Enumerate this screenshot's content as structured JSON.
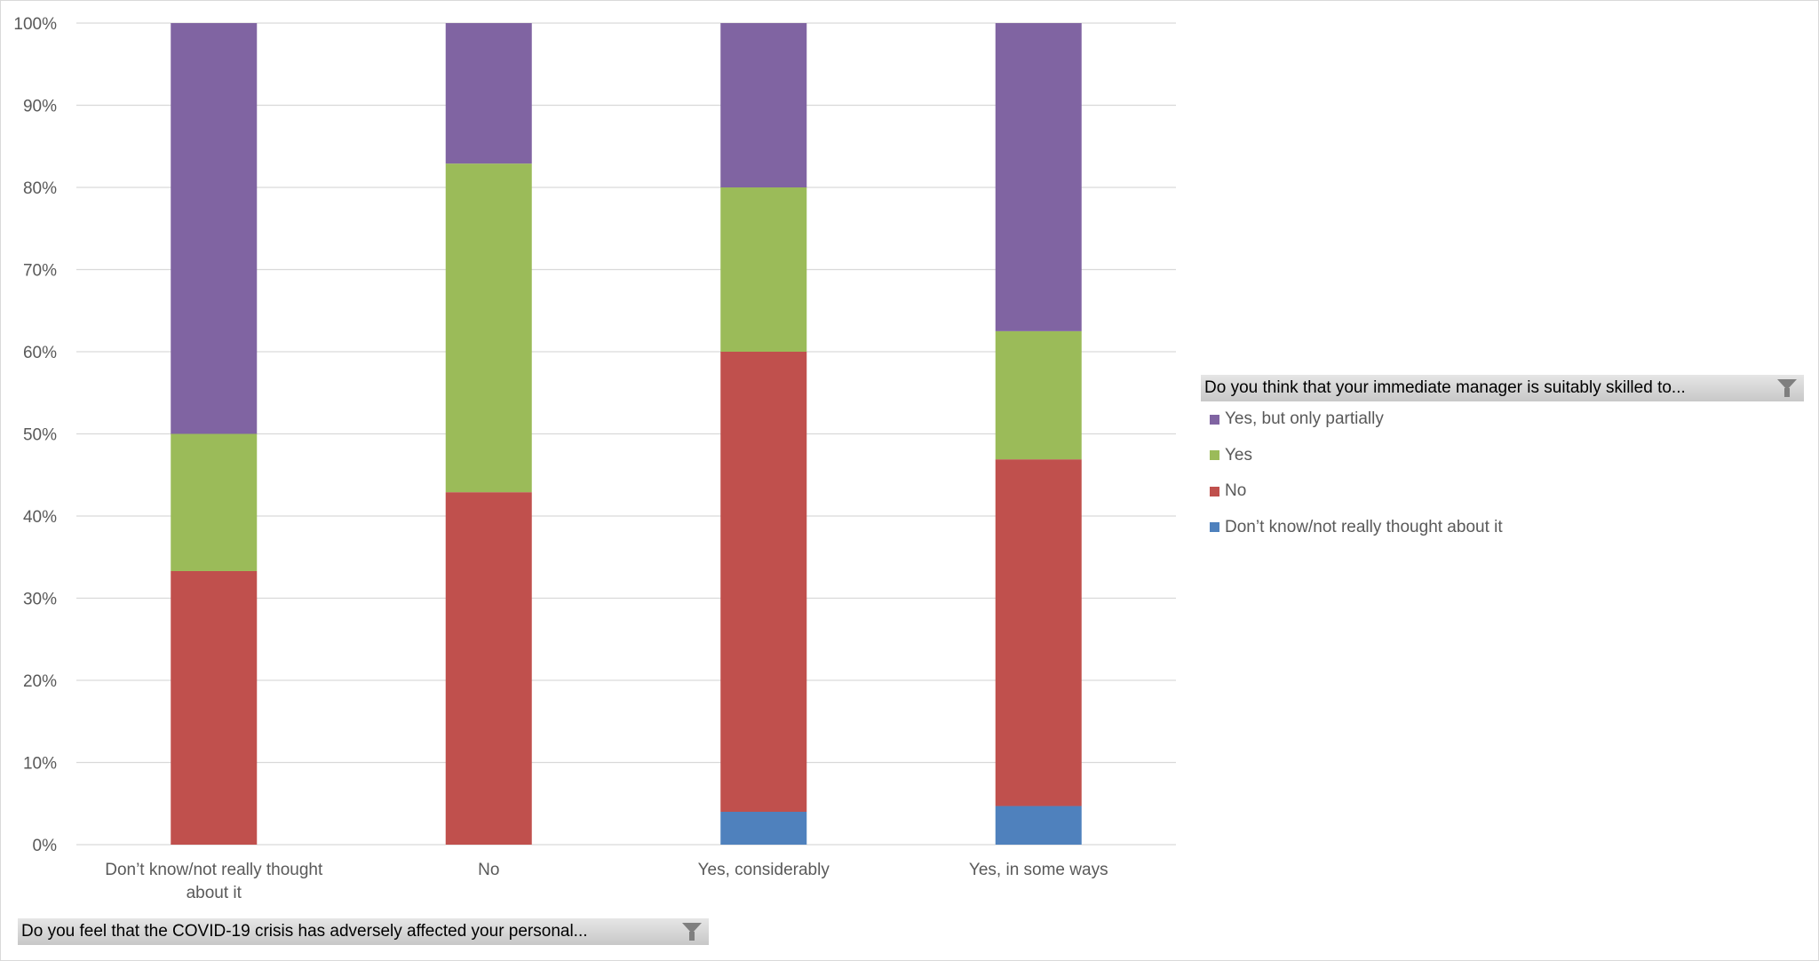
{
  "chart_data": {
    "type": "bar",
    "stacked": true,
    "percent_stacked": true,
    "categories": [
      "Don’t know/not really thought about it",
      "No",
      "Yes, considerably",
      "Yes, in some ways"
    ],
    "category_label_lines": [
      [
        "Don’t know/not really thought",
        "about it"
      ],
      [
        "No"
      ],
      [
        "Yes, considerably"
      ],
      [
        "Yes, in some ways"
      ]
    ],
    "series": [
      {
        "name": "Don’t know/not really thought about it",
        "color": "#4f81bd",
        "values": [
          0,
          0,
          4.0,
          4.7
        ]
      },
      {
        "name": "No",
        "color": "#c0504d",
        "values": [
          33.3,
          42.9,
          56.0,
          42.2
        ]
      },
      {
        "name": "Yes",
        "color": "#9bbb59",
        "values": [
          16.7,
          40.0,
          20.0,
          15.6
        ]
      },
      {
        "name": "Yes, but only partially",
        "color": "#8064a2",
        "values": [
          50.0,
          17.1,
          20.0,
          37.5
        ]
      }
    ],
    "ylim": [
      0,
      100
    ],
    "yticks": [
      "0%",
      "10%",
      "20%",
      "30%",
      "40%",
      "50%",
      "60%",
      "70%",
      "80%",
      "90%",
      "100%"
    ],
    "grid": true,
    "legend_placement": "right",
    "legend_title": "Do you think that your immediate manager is suitably skilled to...",
    "axis_filter_label": "Do you feel that the COVID-19 crisis has adversely affected your personal..."
  },
  "legend_order": [
    3,
    2,
    1,
    0
  ]
}
